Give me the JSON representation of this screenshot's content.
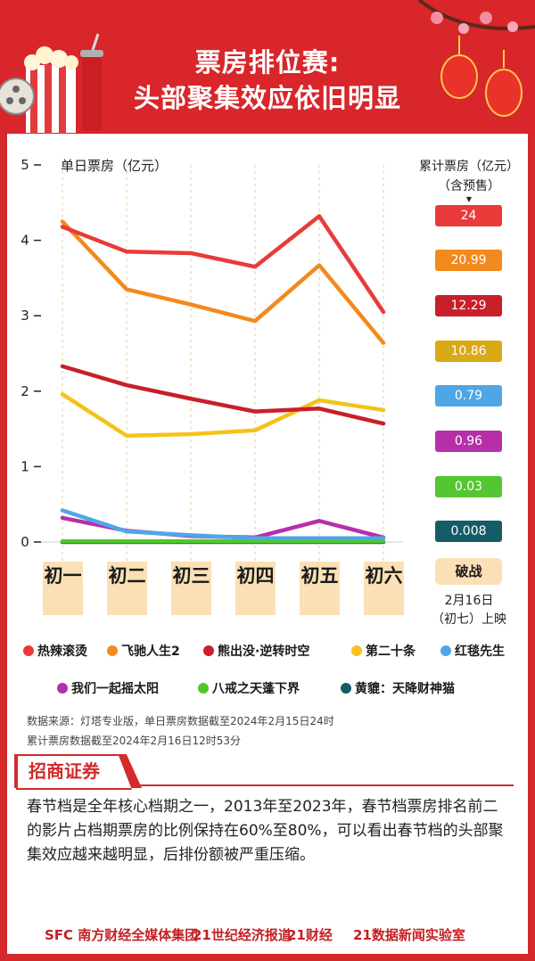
{
  "title_line1": "票房排位赛:",
  "title_line2": "头部聚集效应依旧明显",
  "chart_data": {
    "type": "line",
    "ylabel": "单日票房（亿元）",
    "ylim": [
      0,
      5
    ],
    "yticks": [
      0,
      1,
      2,
      3,
      4,
      5
    ],
    "categories": [
      "初一",
      "初二",
      "初三",
      "初四",
      "初五",
      "初六"
    ],
    "series": [
      {
        "name": "热辣滚烫",
        "color": "#ea3a3a",
        "values": [
          4.18,
          3.85,
          3.83,
          3.65,
          4.32,
          3.05
        ]
      },
      {
        "name": "飞驰人生2",
        "color": "#f28a1e",
        "values": [
          4.25,
          3.35,
          3.15,
          2.93,
          3.67,
          2.64
        ]
      },
      {
        "name": "熊出没·逆转时空",
        "color": "#c81f2a",
        "values": [
          2.33,
          2.08,
          1.9,
          1.73,
          1.77,
          1.57
        ]
      },
      {
        "name": "第二十条",
        "color": "#f5c21a",
        "values": [
          1.96,
          1.41,
          1.43,
          1.48,
          1.88,
          1.75
        ]
      },
      {
        "name": "红毯先生",
        "color": "#4fa6e6",
        "values": [
          0.42,
          0.14,
          0.09,
          0.05,
          0.05,
          0.05
        ]
      },
      {
        "name": "我们一起摇太阳",
        "color": "#b62fa9",
        "values": [
          0.32,
          0.15,
          0.08,
          0.06,
          0.28,
          0.06
        ]
      },
      {
        "name": "八戒之天蓬下界",
        "color": "#4fc82a",
        "values": [
          0.01,
          0.01,
          0.01,
          0.01,
          0.01,
          0.01
        ]
      },
      {
        "name": "黄貔：天降财神猫",
        "color": "#155d66",
        "values": [
          0.0,
          0.0,
          0.0,
          0.0,
          0.0,
          0.0
        ]
      }
    ],
    "cumulative_label_line1": "累计票房（亿元）",
    "cumulative_label_line2": "（含预售）",
    "cumulative": [
      {
        "value": "24",
        "color": "#ea3a3a"
      },
      {
        "value": "20.99",
        "color": "#f28a1e"
      },
      {
        "value": "12.29",
        "color": "#c81f2a"
      },
      {
        "value": "10.86",
        "color": "#d9aa16"
      },
      {
        "value": "0.79",
        "color": "#4fa6e6"
      },
      {
        "value": "0.96",
        "color": "#b62fa9"
      },
      {
        "value": "0.03",
        "color": "#55c633"
      },
      {
        "value": "0.008",
        "color": "#155d66"
      }
    ],
    "extra_badge": "破战",
    "extra_note_line1": "2月16日",
    "extra_note_line2": "（初七）上映"
  },
  "notes": {
    "line1": "数据来源：灯塔专业版，单日票房数据截至2024年2月15日24时",
    "line2": "累计票房数据截至2024年2月16日12时53分"
  },
  "source_label": "招商证券",
  "body_text": "春节档是全年核心档期之一，2013年至2023年，春节档票房排名前二的影片占档期票房的比例保持在60%至80%，可以看出春节档的头部聚集效应越来越明显，后排份额被严重压缩。",
  "footer": {
    "logo1": "SFC 南方财经全媒体集团",
    "logo2": "21世纪经济报道",
    "logo3": "21财经",
    "logo4": "21数据新闻实验室"
  }
}
